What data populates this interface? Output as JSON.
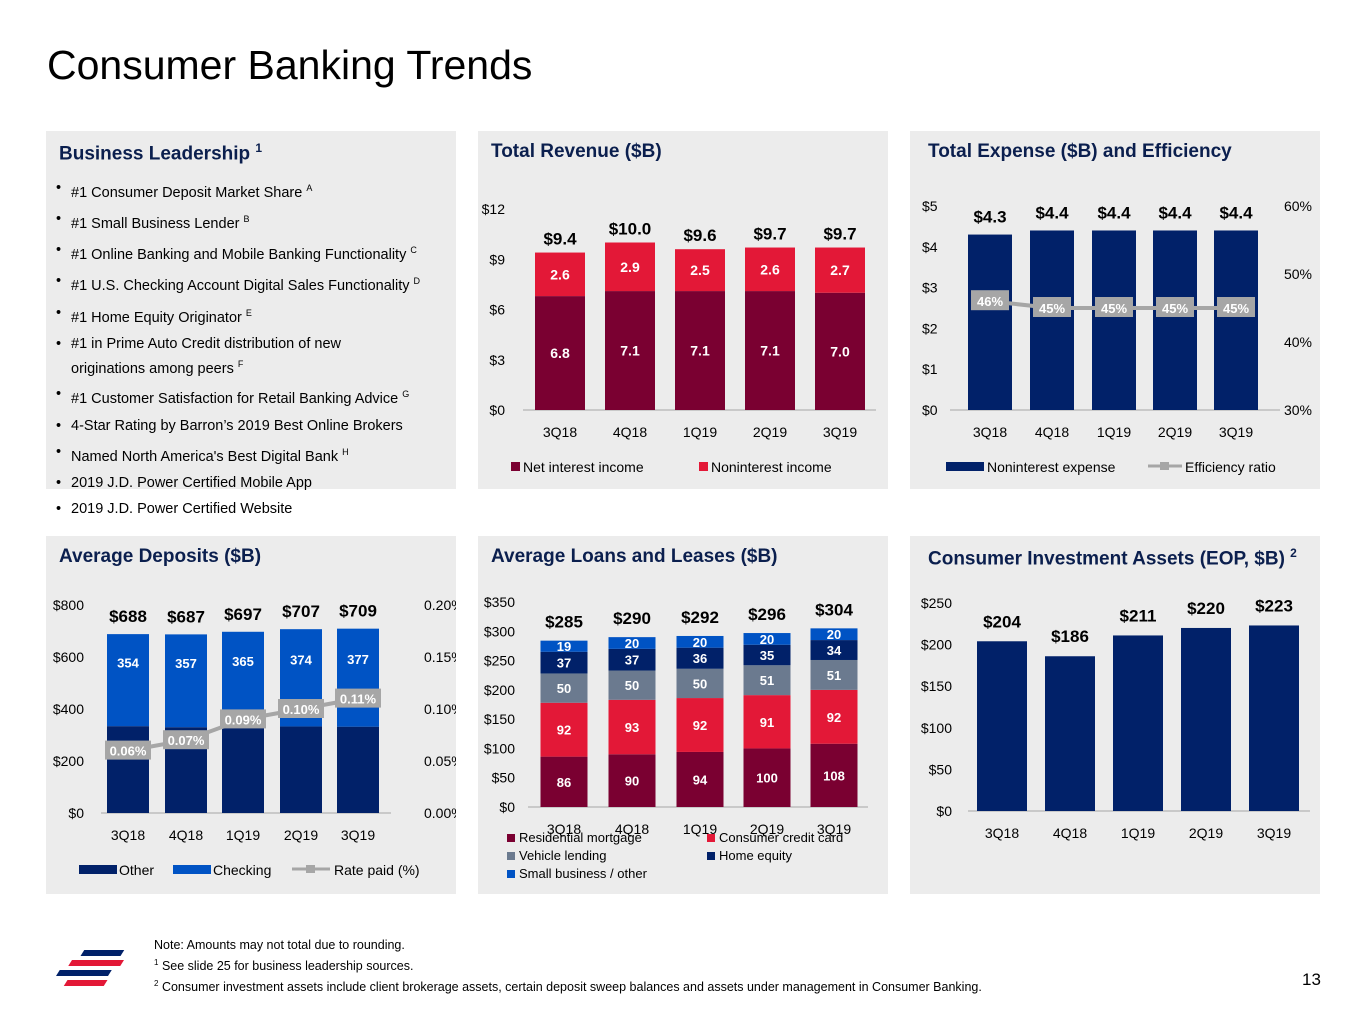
{
  "page": {
    "title": "Consumer Banking Trends",
    "page_number": "13",
    "footnotes": [
      "Note: Amounts may not total due to rounding.",
      "See slide 25 for business leadership sources.",
      "Consumer investment assets include client brokerage assets, certain deposit sweep balances and assets under management in Consumer Banking."
    ],
    "footnote_markers": [
      "",
      "1",
      "2"
    ]
  },
  "leadership": {
    "title": "Business Leadership",
    "title_marker": "1",
    "items": [
      {
        "text": "#1 Consumer Deposit Market Share",
        "marker": "A"
      },
      {
        "text": "#1 Small Business Lender",
        "marker": "B"
      },
      {
        "text": "#1 Online Banking and Mobile Banking Functionality",
        "marker": "C"
      },
      {
        "text": "#1 U.S. Checking Account Digital Sales Functionality",
        "marker": "D"
      },
      {
        "text": "#1 Home Equity Originator",
        "marker": "E"
      },
      {
        "text": "#1 in Prime Auto Credit distribution of new",
        "text2": "originations among peers",
        "marker": "F"
      },
      {
        "text": "#1 Customer Satisfaction for Retail Banking Advice",
        "marker": "G"
      },
      {
        "text": "4-Star Rating by Barron’s 2019 Best Online Brokers",
        "marker": ""
      },
      {
        "text": "Named North America's Best Digital Bank",
        "marker": "H"
      },
      {
        "text": "2019 J.D. Power Certified Mobile App",
        "marker": ""
      },
      {
        "text": "2019 J.D. Power Certified Website",
        "marker": ""
      }
    ]
  },
  "colors": {
    "dark_red": "#7a0031",
    "red": "#e31837",
    "navy": "#012169",
    "blue": "#0053c4",
    "gray": "#6b7a8f",
    "gray_line": "#a6a6a6",
    "panel_bg": "#ececec"
  },
  "chart_data": [
    {
      "id": "revenue",
      "type": "bar",
      "stacked": true,
      "title": "Total Revenue ($B)",
      "categories": [
        "3Q18",
        "4Q18",
        "1Q19",
        "2Q19",
        "3Q19"
      ],
      "ylim": [
        0,
        12
      ],
      "yticks": [
        "$0",
        "$3",
        "$6",
        "$9",
        "$12"
      ],
      "series": [
        {
          "name": "Net interest income",
          "values": [
            6.8,
            7.1,
            7.1,
            7.1,
            7.0
          ],
          "labels": [
            "6.8",
            "7.1",
            "7.1",
            "7.1",
            "7.0"
          ]
        },
        {
          "name": "Noninterest income",
          "values": [
            2.6,
            2.9,
            2.5,
            2.6,
            2.7
          ],
          "labels": [
            "2.6",
            "2.9",
            "2.5",
            "2.6",
            "2.7"
          ]
        }
      ],
      "totals": [
        "$9.4",
        "$10.0",
        "$9.6",
        "$9.7",
        "$9.7"
      ]
    },
    {
      "id": "expense",
      "type": "bar",
      "title": "Total Expense ($B) and Efficiency",
      "categories": [
        "3Q18",
        "4Q18",
        "1Q19",
        "2Q19",
        "3Q19"
      ],
      "ylim": [
        0,
        5
      ],
      "yticks": [
        "$0",
        "$1",
        "$2",
        "$3",
        "$4",
        "$5"
      ],
      "y2lim": [
        30,
        60
      ],
      "y2ticks": [
        "30%",
        "40%",
        "50%",
        "60%"
      ],
      "series": [
        {
          "name": "Noninterest expense",
          "values": [
            4.3,
            4.4,
            4.4,
            4.4,
            4.4
          ],
          "labels": [
            "$4.3",
            "$4.4",
            "$4.4",
            "$4.4",
            "$4.4"
          ]
        },
        {
          "name": "Efficiency ratio",
          "axis": "right",
          "values": [
            46,
            45,
            45,
            45,
            45
          ],
          "labels": [
            "46%",
            "45%",
            "45%",
            "45%",
            "45%"
          ]
        }
      ]
    },
    {
      "id": "deposits",
      "type": "bar",
      "stacked": true,
      "title": "Average Deposits ($B)",
      "categories": [
        "3Q18",
        "4Q18",
        "1Q19",
        "2Q19",
        "3Q19"
      ],
      "ylim": [
        0,
        800
      ],
      "yticks": [
        "$0",
        "$200",
        "$400",
        "$600",
        "$800"
      ],
      "y2lim": [
        0,
        0.2
      ],
      "y2ticks": [
        "0.00%",
        "0.05%",
        "0.10%",
        "0.15%",
        "0.20%"
      ],
      "series": [
        {
          "name": "Other",
          "values": [
            334,
            330,
            332,
            333,
            332
          ]
        },
        {
          "name": "Checking",
          "values": [
            354,
            357,
            365,
            374,
            377
          ],
          "labels": [
            "354",
            "357",
            "365",
            "374",
            "377"
          ]
        },
        {
          "name": "Rate paid (%)",
          "axis": "right",
          "values": [
            0.06,
            0.07,
            0.09,
            0.1,
            0.11
          ],
          "labels": [
            "0.06%",
            "0.07%",
            "0.09%",
            "0.10%",
            "0.11%"
          ]
        }
      ],
      "totals": [
        "$688",
        "$687",
        "$697",
        "$707",
        "$709"
      ]
    },
    {
      "id": "loans",
      "type": "bar",
      "stacked": true,
      "title": "Average Loans and Leases ($B)",
      "categories": [
        "3Q18",
        "4Q18",
        "1Q19",
        "2Q19",
        "3Q19"
      ],
      "ylim": [
        0,
        350
      ],
      "yticks": [
        "$0",
        "$50",
        "$100",
        "$150",
        "$200",
        "$250",
        "$300",
        "$350"
      ],
      "series": [
        {
          "name": "Residential mortgage",
          "values": [
            86,
            90,
            94,
            100,
            108
          ],
          "labels": [
            "86",
            "90",
            "94",
            "100",
            "108"
          ]
        },
        {
          "name": "Consumer credit card",
          "values": [
            92,
            93,
            92,
            91,
            92
          ],
          "labels": [
            "92",
            "93",
            "92",
            "91",
            "92"
          ]
        },
        {
          "name": "Vehicle lending",
          "values": [
            50,
            50,
            50,
            51,
            51
          ],
          "labels": [
            "50",
            "50",
            "50",
            "51",
            "51"
          ]
        },
        {
          "name": "Home equity",
          "values": [
            37,
            37,
            36,
            35,
            34
          ],
          "labels": [
            "37",
            "37",
            "36",
            "35",
            "34"
          ]
        },
        {
          "name": "Small business / other",
          "values": [
            19,
            20,
            20,
            20,
            20
          ],
          "labels": [
            "19",
            "20",
            "20",
            "20",
            "20"
          ]
        }
      ],
      "totals": [
        "$285",
        "$290",
        "$292",
        "$296",
        "$304"
      ]
    },
    {
      "id": "invest",
      "type": "bar",
      "title": "Consumer Investment Assets (EOP, $B)",
      "title_marker": "2",
      "categories": [
        "3Q18",
        "4Q18",
        "1Q19",
        "2Q19",
        "3Q19"
      ],
      "ylim": [
        0,
        250
      ],
      "yticks": [
        "$0",
        "$50",
        "$100",
        "$150",
        "$200",
        "$250"
      ],
      "series": [
        {
          "values": [
            204,
            186,
            211,
            220,
            223
          ],
          "labels": [
            "$204",
            "$186",
            "$211",
            "$220",
            "$223"
          ]
        }
      ]
    }
  ]
}
